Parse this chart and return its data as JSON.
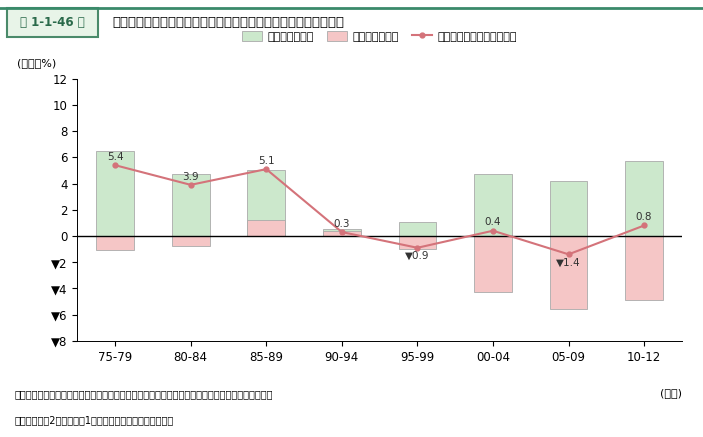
{
  "categories": [
    "75-79",
    "80-84",
    "85-89",
    "90-94",
    "95-99",
    "00-04",
    "05-09",
    "10-12"
  ],
  "green_bars": [
    6.5,
    4.7,
    5.0,
    0.5,
    1.1,
    4.7,
    4.2,
    5.7
  ],
  "pink_bars": [
    -1.1,
    -0.8,
    1.2,
    0.35,
    -1.0,
    -4.3,
    -5.6,
    -4.9
  ],
  "line_values": [
    5.4,
    3.9,
    5.1,
    0.3,
    -0.9,
    0.4,
    -1.4,
    0.8
  ],
  "line_labels": [
    "5.4",
    "3.9",
    "5.1",
    "0.3",
    "▼0.9",
    "0.4",
    "▼1.4",
    "0.8"
  ],
  "label_va": [
    "bottom",
    "bottom",
    "bottom",
    "bottom",
    "top",
    "bottom",
    "top",
    "bottom"
  ],
  "label_dy": [
    0.25,
    0.25,
    0.25,
    0.25,
    -0.25,
    0.25,
    -0.25,
    0.25
  ],
  "green_color": "#cce8cc",
  "green_edge": "#aaaaaa",
  "pink_color": "#f5c6c6",
  "pink_edge": "#aaaaaa",
  "line_color": "#d4737a",
  "bar_width": 0.5,
  "ylim": [
    -8,
    12
  ],
  "yticks": [
    -8,
    -6,
    -4,
    -2,
    0,
    2,
    4,
    6,
    8,
    10,
    12
  ],
  "ytick_labels": [
    "▼8",
    "▼6",
    "▼4",
    "▼2",
    "0",
    "2",
    "4",
    "6",
    "8",
    "10",
    "12"
  ],
  "ylabel": "(年率、%)",
  "xlabel": "(年度)",
  "legend_green": "実質労働生産性",
  "legend_pink": "価格転嫁力指標",
  "legend_line": "一人当たり名目付加価値額",
  "header_label": "第 1-1-46 図",
  "header_title": "一人当たり名目付加価値額上昇率とその変動要因（中小製造業）",
  "footnote1": "資料：日本銀行「全国企業短期経済観測調査」、「企業物価指数」、財務省「法人企業統計年報」",
  "footnote2": "（注）資本金2千万円以上1億円未満を中小製造業とした。",
  "header_box_color": "#4a8a6a",
  "header_bg_color": "#e8f4e8"
}
